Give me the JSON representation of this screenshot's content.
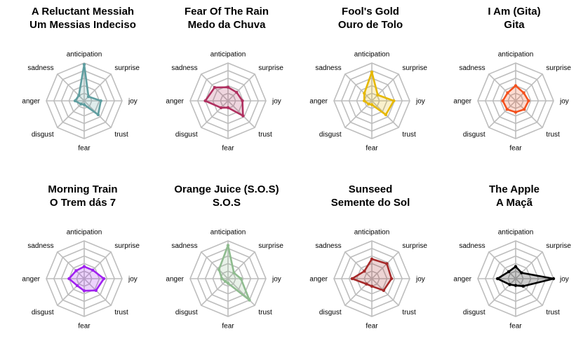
{
  "chart_data": {
    "type": "radar",
    "axes": [
      "anticipation",
      "surprise",
      "joy",
      "trust",
      "fear",
      "disgust",
      "anger",
      "sadness"
    ],
    "rlim": [
      0,
      5
    ],
    "grid": true,
    "charts": [
      {
        "title_line1": "A Reluctant Messiah",
        "title_line2": "Um Messias Indeciso",
        "color": "#5f9ea0",
        "fill": "rgba(95,158,160,0.20)",
        "values": [
          4.8,
          0.8,
          2.2,
          2.6,
          0.5,
          0.6,
          1.2,
          1.0
        ]
      },
      {
        "title_line1": "Fear Of The Rain",
        "title_line2": "Medo da Chuva",
        "color": "#b03060",
        "fill": "rgba(176,48,96,0.20)",
        "values": [
          1.8,
          1.6,
          1.9,
          2.8,
          0.9,
          1.3,
          3.0,
          2.5
        ]
      },
      {
        "title_line1": "Fool's Gold",
        "title_line2": "Ouro de Tolo",
        "color": "#e6b800",
        "fill": "rgba(230,184,0,0.20)",
        "values": [
          3.8,
          1.1,
          2.9,
          2.6,
          0.5,
          0.6,
          1.0,
          1.4
        ]
      },
      {
        "title_line1": "I Am (Gita)",
        "title_line2": "Gita",
        "color": "#f4511e",
        "fill": "rgba(244,81,30,0.20)",
        "values": [
          2.0,
          1.5,
          1.7,
          1.6,
          1.5,
          1.6,
          1.7,
          1.5
        ]
      },
      {
        "title_line1": "Morning Train",
        "title_line2": "O Trem dás 7",
        "color": "#a020f0",
        "fill": "rgba(160,32,240,0.20)",
        "values": [
          1.6,
          1.6,
          2.6,
          2.2,
          1.6,
          1.3,
          2.0,
          1.5
        ]
      },
      {
        "title_line1": "Orange Juice (S.O.S)",
        "title_line2": "S.O.S",
        "color": "#8fbc8f",
        "fill": "rgba(143,188,143,0.20)",
        "values": [
          4.4,
          1.1,
          1.7,
          4.0,
          0.6,
          0.5,
          0.8,
          1.7
        ]
      },
      {
        "title_line1": "Sunseed",
        "title_line2": "Semente do Sol",
        "color": "#a52a2a",
        "fill": "rgba(165,42,42,0.20)",
        "values": [
          2.6,
          2.8,
          2.6,
          2.2,
          1.0,
          1.0,
          2.6,
          1.4
        ]
      },
      {
        "title_line1": "The Apple",
        "title_line2": "A Maçã",
        "color": "#000000",
        "fill": "rgba(0,0,0,0.20)",
        "values": [
          1.6,
          1.1,
          5.0,
          1.4,
          0.9,
          1.1,
          2.4,
          1.3
        ]
      }
    ]
  }
}
